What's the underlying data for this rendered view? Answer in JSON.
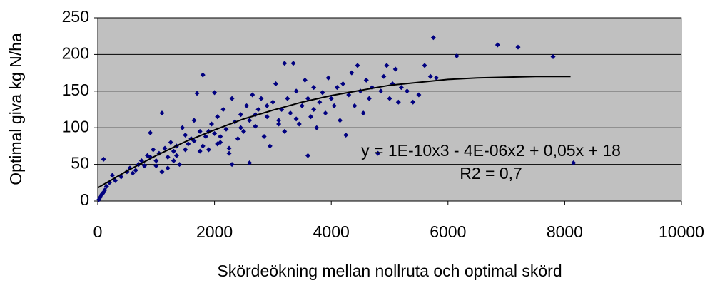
{
  "chart_data": {
    "type": "scatter",
    "xlabel": "Skördeökning mellan nollruta och optimal skörd",
    "ylabel": "Optimal giva kg N/ha",
    "annotations": [
      "y = 1E-10x3 - 4E-06x2 + 0,05x + 18",
      "R2 = 0,7"
    ],
    "xlim": [
      0,
      10000
    ],
    "xticks": [
      0,
      2000,
      4000,
      6000,
      8000,
      10000
    ],
    "ylim": [
      0,
      250
    ],
    "yticks": [
      0,
      50,
      100,
      150,
      200,
      250
    ],
    "grid": true,
    "background": "#c0c0c0",
    "series": [
      {
        "color": "#000080",
        "x": [
          20,
          40,
          60,
          80,
          100,
          120,
          150,
          200,
          100,
          250,
          300,
          400,
          500,
          550,
          600,
          650,
          700,
          750,
          800,
          850,
          900,
          950,
          1000,
          1050,
          1100,
          1100,
          1150,
          1200,
          1250,
          1300,
          1350,
          1400,
          1450,
          1500,
          1550,
          1600,
          1650,
          1700,
          1750,
          1800,
          1800,
          1850,
          1900,
          1950,
          2000,
          2000,
          2050,
          2100,
          2150,
          2200,
          2250,
          2300,
          2300,
          2350,
          2400,
          2450,
          2500,
          2550,
          2600,
          2600,
          2650,
          2700,
          2750,
          2800,
          2850,
          2900,
          2950,
          3000,
          3050,
          3100,
          3150,
          3200,
          3200,
          3250,
          3300,
          3350,
          3400,
          3450,
          3500,
          3550,
          3600,
          3600,
          3650,
          3700,
          3750,
          3800,
          3850,
          3900,
          3950,
          4000,
          4050,
          4100,
          4150,
          4200,
          4250,
          4300,
          4350,
          4400,
          4450,
          4500,
          4550,
          4600,
          4650,
          4700,
          4800,
          4850,
          4900,
          4950,
          5000,
          5050,
          5100,
          5150,
          5200,
          5300,
          5400,
          5500,
          5600,
          5700,
          5750,
          5800,
          6150,
          6850,
          7200,
          7800,
          8150,
          1200,
          1350,
          1500,
          1650,
          1900,
          2100,
          2250,
          2450,
          2700,
          2900,
          3100,
          3400,
          3700,
          900,
          1000,
          1300,
          1750,
          2050
        ],
        "values": [
          2,
          5,
          8,
          10,
          12,
          15,
          20,
          25,
          57,
          35,
          28,
          33,
          40,
          45,
          38,
          42,
          50,
          55,
          48,
          62,
          93,
          70,
          55,
          65,
          120,
          40,
          72,
          60,
          80,
          68,
          75,
          50,
          100,
          90,
          78,
          85,
          110,
          147,
          95,
          172,
          75,
          88,
          70,
          105,
          92,
          148,
          115,
          80,
          125,
          98,
          65,
          50,
          140,
          108,
          85,
          118,
          95,
          130,
          52,
          110,
          145,
          102,
          125,
          140,
          88,
          115,
          75,
          135,
          160,
          110,
          125,
          188,
          95,
          140,
          120,
          188,
          150,
          105,
          130,
          165,
          62,
          140,
          115,
          155,
          100,
          135,
          148,
          120,
          168,
          140,
          130,
          155,
          110,
          160,
          90,
          145,
          175,
          130,
          185,
          150,
          120,
          165,
          140,
          155,
          65,
          150,
          170,
          185,
          140,
          160,
          180,
          135,
          155,
          150,
          135,
          145,
          185,
          170,
          223,
          168,
          198,
          213,
          210,
          197,
          52,
          45,
          62,
          70,
          82,
          95,
          88,
          72,
          100,
          118,
          130,
          105,
          112,
          125,
          60,
          48,
          55,
          68,
          78
        ]
      }
    ],
    "trendline": {
      "color": "#000000",
      "x": [
        0,
        500,
        1000,
        1500,
        2000,
        2500,
        3000,
        3500,
        4000,
        4500,
        5000,
        5500,
        6000,
        6500,
        7000,
        7500,
        8100
      ],
      "values": [
        18,
        41,
        62,
        81,
        97,
        112,
        124,
        135,
        144,
        151,
        158,
        162,
        166,
        168,
        169,
        170,
        170
      ]
    }
  }
}
